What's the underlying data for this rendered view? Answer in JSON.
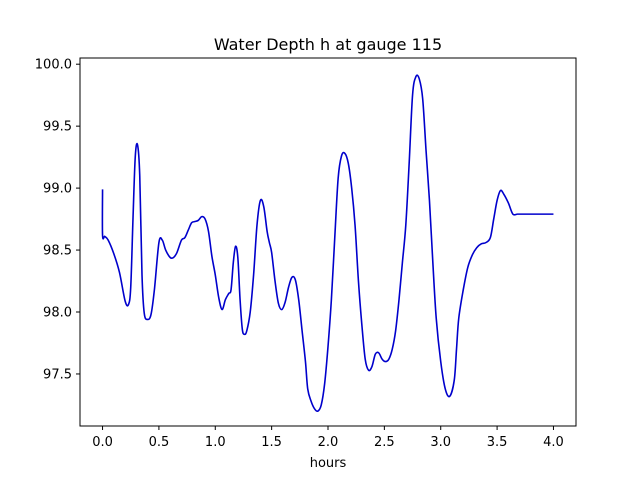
{
  "chart_data": {
    "type": "line",
    "title": "Water Depth h at gauge 115",
    "xlabel": "hours",
    "ylabel": "",
    "xlim": [
      -0.2,
      4.2
    ],
    "ylim": [
      97.08,
      100.05
    ],
    "grid": false,
    "xticks": [
      0.0,
      0.5,
      1.0,
      1.5,
      2.0,
      2.5,
      3.0,
      3.5,
      4.0
    ],
    "xtick_labels": [
      "0.0",
      "0.5",
      "1.0",
      "1.5",
      "2.0",
      "2.5",
      "3.0",
      "3.5",
      "4.0"
    ],
    "yticks": [
      97.5,
      98.0,
      98.5,
      99.0,
      99.5,
      100.0
    ],
    "ytick_labels": [
      "97.5",
      "98.0",
      "98.5",
      "99.0",
      "99.5",
      "100.0"
    ],
    "series": [
      {
        "color": "#0000cc",
        "x": [
          0.0,
          0.0,
          0.02,
          0.05,
          0.1,
          0.15,
          0.2,
          0.23,
          0.25,
          0.27,
          0.29,
          0.31,
          0.33,
          0.35,
          0.37,
          0.4,
          0.43,
          0.46,
          0.5,
          0.53,
          0.56,
          0.6,
          0.63,
          0.66,
          0.7,
          0.73,
          0.76,
          0.79,
          0.82,
          0.85,
          0.88,
          0.91,
          0.94,
          0.97,
          1.0,
          1.03,
          1.06,
          1.09,
          1.12,
          1.14,
          1.16,
          1.18,
          1.2,
          1.22,
          1.24,
          1.26,
          1.28,
          1.31,
          1.34,
          1.37,
          1.4,
          1.43,
          1.46,
          1.48,
          1.5,
          1.53,
          1.56,
          1.59,
          1.62,
          1.65,
          1.68,
          1.71,
          1.74,
          1.77,
          1.8,
          1.82,
          1.85,
          1.88,
          1.91,
          1.94,
          1.97,
          2.0,
          2.03,
          2.06,
          2.09,
          2.12,
          2.15,
          2.18,
          2.21,
          2.24,
          2.27,
          2.3,
          2.33,
          2.36,
          2.39,
          2.42,
          2.45,
          2.48,
          2.51,
          2.54,
          2.57,
          2.6,
          2.63,
          2.66,
          2.69,
          2.72,
          2.75,
          2.78,
          2.81,
          2.84,
          2.87,
          2.9,
          2.93,
          2.96,
          3.0,
          3.04,
          3.08,
          3.12,
          3.14,
          3.16,
          3.2,
          3.24,
          3.28,
          3.32,
          3.36,
          3.4,
          3.44,
          3.47,
          3.5,
          3.53,
          3.56,
          3.6,
          3.64,
          3.68,
          3.72,
          3.76,
          3.8,
          3.84,
          3.88,
          3.92,
          3.95,
          3.98,
          4.0
        ],
        "y": [
          98.99,
          98.62,
          98.61,
          98.58,
          98.47,
          98.32,
          98.09,
          98.06,
          98.2,
          98.75,
          99.25,
          99.35,
          99.1,
          98.3,
          97.99,
          97.94,
          97.98,
          98.18,
          98.56,
          98.58,
          98.5,
          98.44,
          98.44,
          98.48,
          98.58,
          98.6,
          98.66,
          98.72,
          98.73,
          98.74,
          98.77,
          98.75,
          98.65,
          98.45,
          98.3,
          98.12,
          98.02,
          98.1,
          98.15,
          98.18,
          98.4,
          98.53,
          98.44,
          98.1,
          97.86,
          97.82,
          97.85,
          98.0,
          98.3,
          98.7,
          98.9,
          98.85,
          98.65,
          98.56,
          98.48,
          98.25,
          98.07,
          98.02,
          98.08,
          98.2,
          98.28,
          98.26,
          98.1,
          97.85,
          97.6,
          97.38,
          97.28,
          97.22,
          97.2,
          97.25,
          97.42,
          97.72,
          98.1,
          98.6,
          99.08,
          99.26,
          99.28,
          99.2,
          99.0,
          98.7,
          98.25,
          97.9,
          97.62,
          97.53,
          97.56,
          97.66,
          97.67,
          97.62,
          97.6,
          97.62,
          97.7,
          97.85,
          98.1,
          98.4,
          98.7,
          99.2,
          99.75,
          99.9,
          99.88,
          99.72,
          99.3,
          98.9,
          98.4,
          97.95,
          97.6,
          97.38,
          97.32,
          97.45,
          97.7,
          97.95,
          98.18,
          98.36,
          98.46,
          98.52,
          98.55,
          98.56,
          98.6,
          98.75,
          98.9,
          98.98,
          98.95,
          98.88,
          98.79,
          98.79,
          98.79,
          98.79,
          98.79,
          98.79,
          98.79,
          98.79,
          98.79,
          98.79,
          98.79
        ]
      }
    ]
  }
}
